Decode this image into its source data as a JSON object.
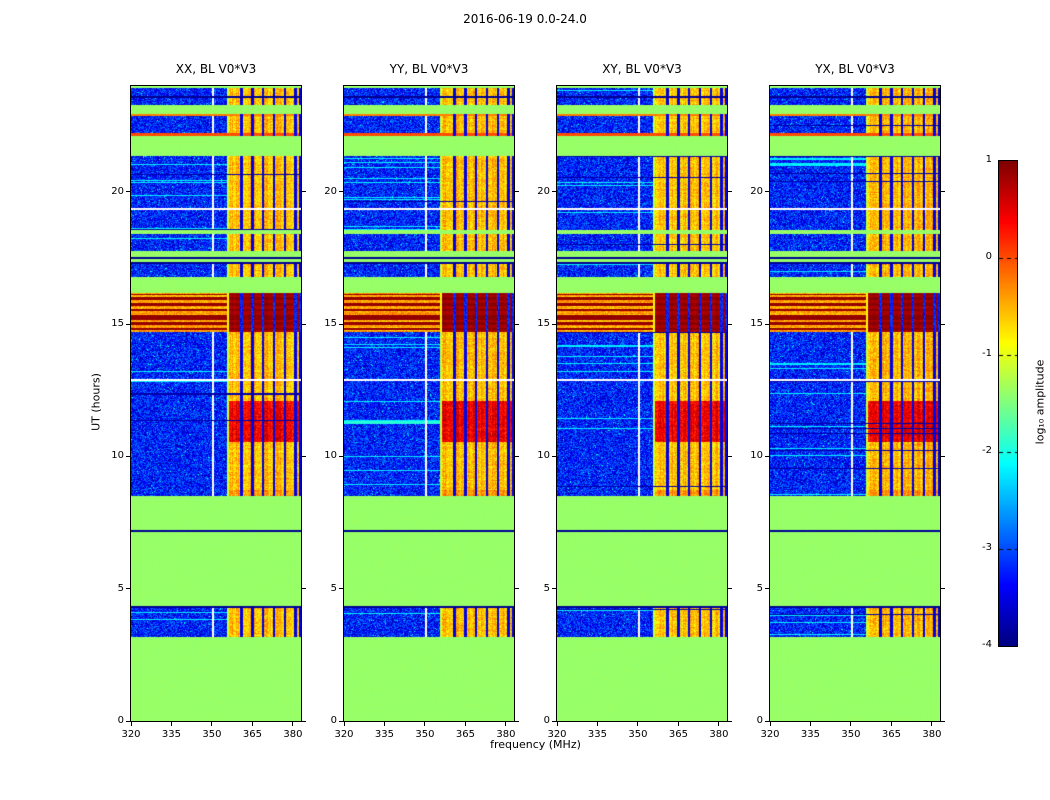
{
  "chart_data": {
    "type": "heatmap",
    "title": "2016-06-19 0.0-24.0",
    "xlabel": "frequency (MHz)",
    "ylabel": "UT (hours)",
    "colormap": "jet",
    "x_range": [
      320,
      383
    ],
    "y_range": [
      0,
      24
    ],
    "x_ticks": [
      320,
      335,
      350,
      365,
      380
    ],
    "y_ticks": [
      0,
      5,
      10,
      15,
      20
    ],
    "value_range": [
      -4,
      1
    ],
    "colorbar": {
      "label": "log₁₀ amplitude",
      "ticks": [
        1,
        0,
        -1,
        -2,
        -3,
        -4
      ],
      "range": [
        -4,
        1
      ]
    },
    "panels": [
      {
        "id": "XX",
        "title": "XX, BL V0*V3"
      },
      {
        "id": "YY",
        "title": "YY, BL V0*V3",
        "extra_cyan_line_hour": 11.28
      },
      {
        "id": "XY",
        "title": "XY, BL V0*V3"
      },
      {
        "id": "YX",
        "title": "YX, BL V0*V3"
      }
    ],
    "background_value": -1.38,
    "noise_base_value": -3.25,
    "rfi": {
      "f_start": 356.5,
      "f_end": 383,
      "default_value": -0.55,
      "edge_value": -1.15,
      "notch_freqs": [
        361,
        365,
        369,
        373,
        377,
        381,
        382.8
      ],
      "notch_width": 0.9
    },
    "white_vline_freq": 350.3,
    "burst_stripes": [
      {
        "hour": 14.82,
        "width": 0.08
      },
      {
        "hour": 15.02,
        "width": 0.1
      },
      {
        "hour": 15.24,
        "width": 0.18
      },
      {
        "hour": 15.52,
        "width": 0.08
      },
      {
        "hour": 15.74,
        "width": 0.1
      },
      {
        "hour": 15.97,
        "width": 0.08
      },
      {
        "hour": 16.12,
        "width": 0.05
      }
    ],
    "bands": [
      {
        "t0": 0.0,
        "t1": 3.18,
        "kind": "flat"
      },
      {
        "t0": 3.18,
        "t1": 4.26,
        "kind": "noise",
        "rfi": true
      },
      {
        "t0": 4.26,
        "t1": 4.33,
        "kind": "dark"
      },
      {
        "t0": 4.33,
        "t1": 7.14,
        "kind": "flat"
      },
      {
        "t0": 7.14,
        "t1": 7.22,
        "kind": "dark"
      },
      {
        "t0": 7.22,
        "t1": 8.52,
        "kind": "flat"
      },
      {
        "t0": 8.52,
        "t1": 8.72,
        "kind": "noise",
        "rfi": true,
        "rfi_value": -0.35
      },
      {
        "t0": 8.72,
        "t1": 10.55,
        "kind": "noise",
        "rfi": true
      },
      {
        "t0": 10.55,
        "t1": 12.08,
        "kind": "noise",
        "rfi": true,
        "rfi_value": 0.45
      },
      {
        "t0": 12.08,
        "t1": 12.84,
        "kind": "noise",
        "rfi": true
      },
      {
        "t0": 12.84,
        "t1": 12.93,
        "kind": "gap"
      },
      {
        "t0": 12.93,
        "t1": 14.72,
        "kind": "noise",
        "rfi": true,
        "streaks": true
      },
      {
        "t0": 14.72,
        "t1": 16.18,
        "kind": "burst"
      },
      {
        "t0": 16.18,
        "t1": 16.78,
        "kind": "flat"
      },
      {
        "t0": 16.78,
        "t1": 17.28,
        "kind": "noise",
        "rfi": true
      },
      {
        "t0": 17.28,
        "t1": 17.34,
        "kind": "dark"
      },
      {
        "t0": 17.34,
        "t1": 17.48,
        "kind": "flat"
      },
      {
        "t0": 17.48,
        "t1": 17.53,
        "kind": "dark"
      },
      {
        "t0": 17.53,
        "t1": 17.78,
        "kind": "flat"
      },
      {
        "t0": 17.78,
        "t1": 18.42,
        "kind": "noise",
        "rfi": true
      },
      {
        "t0": 18.42,
        "t1": 18.56,
        "kind": "flat"
      },
      {
        "t0": 18.56,
        "t1": 19.32,
        "kind": "noise",
        "rfi": true
      },
      {
        "t0": 19.32,
        "t1": 19.4,
        "kind": "gap"
      },
      {
        "t0": 19.4,
        "t1": 21.34,
        "kind": "noise",
        "rfi": true,
        "streaks": true
      },
      {
        "t0": 21.34,
        "t1": 22.12,
        "kind": "flat"
      },
      {
        "t0": 22.12,
        "t1": 22.22,
        "kind": "hline",
        "value": 0.0
      },
      {
        "t0": 22.22,
        "t1": 22.85,
        "kind": "noise",
        "rfi": true
      },
      {
        "t0": 22.85,
        "t1": 22.93,
        "kind": "hline",
        "value": -0.25
      },
      {
        "t0": 22.93,
        "t1": 23.3,
        "kind": "flat"
      },
      {
        "t0": 23.3,
        "t1": 23.56,
        "kind": "noise",
        "rfi": true
      },
      {
        "t0": 23.56,
        "t1": 23.62,
        "kind": "dark"
      },
      {
        "t0": 23.62,
        "t1": 23.94,
        "kind": "noise",
        "rfi": true
      },
      {
        "t0": 23.94,
        "t1": 24.0,
        "kind": "flat"
      }
    ]
  }
}
